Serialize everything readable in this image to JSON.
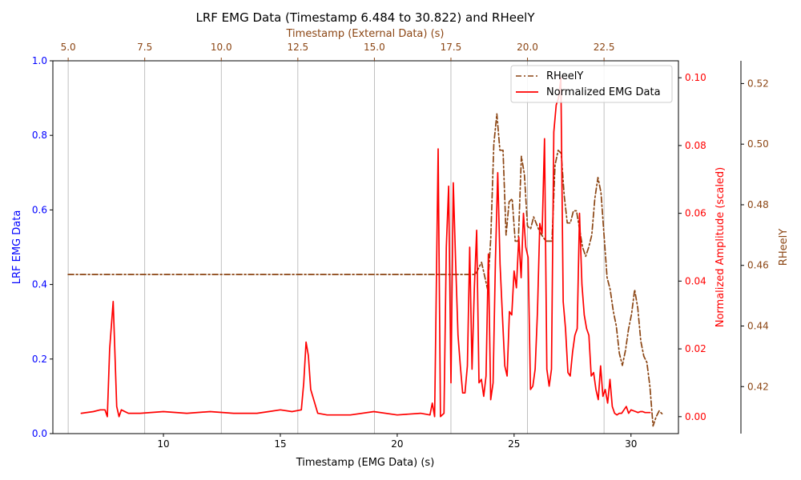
{
  "chart_data": {
    "type": "line",
    "title": "LRF EMG Data (Timestamp 6.484 to 30.822) and RHeelY",
    "axes": {
      "x_bottom": {
        "label": "Timestamp (EMG Data) (s)",
        "range": [
          5.27,
          32.03
        ],
        "ticks": [
          10,
          15,
          20,
          25,
          30
        ],
        "tick_labels": [
          "10",
          "15",
          "20",
          "25",
          "30"
        ],
        "color": "#000000"
      },
      "x_top": {
        "label": "Timestamp (External Data) (s)",
        "range": [
          4.5,
          24.93
        ],
        "ticks": [
          5.0,
          7.5,
          10.0,
          12.5,
          15.0,
          17.5,
          20.0,
          22.5
        ],
        "tick_labels": [
          "5.0",
          "7.5",
          "10.0",
          "12.5",
          "15.0",
          "17.5",
          "20.0",
          "22.5"
        ],
        "color": "#8B4513",
        "grid": true
      },
      "y_left": {
        "label": "LRF EMG Data",
        "range": [
          0,
          1
        ],
        "ticks": [
          0.0,
          0.2,
          0.4,
          0.6,
          0.8,
          1.0
        ],
        "tick_labels": [
          "0.0",
          "0.2",
          "0.4",
          "0.6",
          "0.8",
          "1.0"
        ],
        "color": "#0000ff"
      },
      "y_right": {
        "label": "Normalized Amplitude (scaled)",
        "range": [
          -0.005,
          0.105
        ],
        "ticks": [
          0.0,
          0.02,
          0.04,
          0.06,
          0.08,
          0.1
        ],
        "tick_labels": [
          "0.00",
          "0.02",
          "0.04",
          "0.06",
          "0.08",
          "0.10"
        ],
        "color": "#ff0000"
      },
      "y_right2": {
        "label": "RHeelY",
        "range": [
          0.4045,
          0.5275
        ],
        "ticks": [
          0.42,
          0.44,
          0.46,
          0.48,
          0.5,
          0.52
        ],
        "tick_labels": [
          "0.42",
          "0.44",
          "0.46",
          "0.48",
          "0.50",
          "0.52"
        ],
        "color": "#8B4513"
      }
    },
    "legend": {
      "position": "top-right",
      "entries": [
        "RHeelY",
        "Normalized EMG Data"
      ]
    },
    "series": [
      {
        "name": "RHeelY",
        "axis": "y_right2",
        "x_axis": "x_top",
        "style": "dash-dot",
        "color": "#8B4513",
        "x": [
          5.0,
          8.0,
          12.0,
          16.0,
          18.0,
          18.3,
          18.5,
          18.7,
          18.8,
          18.9,
          19.0,
          19.1,
          19.2,
          19.3,
          19.4,
          19.5,
          19.6,
          19.7,
          19.8,
          19.9,
          20.0,
          20.1,
          20.2,
          20.4,
          20.6,
          20.8,
          20.9,
          21.0,
          21.1,
          21.2,
          21.3,
          21.4,
          21.5,
          21.6,
          21.8,
          21.9,
          22.0,
          22.1,
          22.2,
          22.3,
          22.4,
          22.5,
          22.6,
          22.7,
          22.8,
          22.9,
          23.0,
          23.1,
          23.2,
          23.3,
          23.4,
          23.5,
          23.6,
          23.7,
          23.8,
          23.9,
          24.0,
          24.1,
          24.2,
          24.3,
          24.4
        ],
        "y": [
          0.457,
          0.457,
          0.457,
          0.457,
          0.457,
          0.457,
          0.461,
          0.452,
          0.469,
          0.5,
          0.51,
          0.498,
          0.498,
          0.47,
          0.481,
          0.482,
          0.468,
          0.468,
          0.496,
          0.49,
          0.473,
          0.472,
          0.476,
          0.471,
          0.468,
          0.468,
          0.493,
          0.498,
          0.497,
          0.483,
          0.474,
          0.474,
          0.478,
          0.478,
          0.466,
          0.463,
          0.466,
          0.47,
          0.482,
          0.489,
          0.484,
          0.47,
          0.456,
          0.452,
          0.445,
          0.44,
          0.431,
          0.427,
          0.432,
          0.439,
          0.444,
          0.452,
          0.446,
          0.435,
          0.43,
          0.428,
          0.42,
          0.407,
          0.41,
          0.412,
          0.411
        ]
      },
      {
        "name": "Normalized EMG Data",
        "axis": "y_right",
        "x_axis": "x_bottom",
        "style": "solid",
        "color": "#ff0000",
        "x": [
          6.484,
          7.0,
          7.3,
          7.5,
          7.6,
          7.7,
          7.85,
          8.0,
          8.1,
          8.2,
          8.5,
          9.0,
          10.0,
          11.0,
          12.0,
          13.0,
          14.0,
          14.5,
          15.0,
          15.5,
          15.9,
          16.0,
          16.1,
          16.2,
          16.3,
          16.6,
          17.0,
          18.0,
          19.0,
          20.0,
          21.0,
          21.4,
          21.5,
          21.6,
          21.75,
          21.85,
          22.0,
          22.1,
          22.2,
          22.3,
          22.4,
          22.5,
          22.6,
          22.7,
          22.8,
          22.9,
          23.0,
          23.1,
          23.2,
          23.3,
          23.4,
          23.5,
          23.6,
          23.7,
          23.8,
          23.9,
          24.0,
          24.1,
          24.2,
          24.3,
          24.4,
          24.5,
          24.6,
          24.7,
          24.8,
          24.9,
          25.0,
          25.1,
          25.2,
          25.3,
          25.4,
          25.5,
          25.6,
          25.7,
          25.8,
          25.9,
          26.0,
          26.1,
          26.2,
          26.3,
          26.4,
          26.5,
          26.6,
          26.7,
          26.8,
          26.9,
          27.0,
          27.1,
          27.2,
          27.3,
          27.4,
          27.5,
          27.6,
          27.7,
          27.8,
          27.9,
          28.0,
          28.1,
          28.2,
          28.3,
          28.4,
          28.5,
          28.6,
          28.7,
          28.8,
          28.9,
          29.0,
          29.1,
          29.2,
          29.3,
          29.4,
          29.5,
          29.6,
          29.7,
          29.8,
          29.9,
          30.0,
          30.2,
          30.3,
          30.4,
          30.5,
          30.6,
          30.822
        ],
        "y": [
          0.001,
          0.0015,
          0.002,
          0.002,
          0.0,
          0.02,
          0.034,
          0.003,
          0.0,
          0.002,
          0.001,
          0.001,
          0.0015,
          0.001,
          0.0015,
          0.001,
          0.001,
          0.0015,
          0.002,
          0.0015,
          0.002,
          0.01,
          0.022,
          0.018,
          0.008,
          0.001,
          0.0005,
          0.0005,
          0.0015,
          0.0005,
          0.001,
          0.0005,
          0.004,
          0.0,
          0.079,
          0.0,
          0.001,
          0.05,
          0.068,
          0.01,
          0.069,
          0.045,
          0.024,
          0.015,
          0.007,
          0.007,
          0.015,
          0.05,
          0.014,
          0.038,
          0.055,
          0.01,
          0.011,
          0.006,
          0.012,
          0.048,
          0.005,
          0.01,
          0.046,
          0.072,
          0.045,
          0.03,
          0.015,
          0.012,
          0.031,
          0.03,
          0.043,
          0.038,
          0.053,
          0.041,
          0.06,
          0.05,
          0.047,
          0.008,
          0.009,
          0.014,
          0.031,
          0.057,
          0.054,
          0.082,
          0.014,
          0.009,
          0.014,
          0.084,
          0.092,
          0.094,
          0.1,
          0.034,
          0.026,
          0.013,
          0.012,
          0.019,
          0.024,
          0.026,
          0.06,
          0.039,
          0.03,
          0.026,
          0.024,
          0.012,
          0.013,
          0.008,
          0.005,
          0.015,
          0.006,
          0.008,
          0.004,
          0.011,
          0.003,
          0.001,
          0.0005,
          0.001,
          0.001,
          0.002,
          0.003,
          0.001,
          0.002,
          0.0015,
          0.0012,
          0.0015,
          0.0015,
          0.0012,
          0.0012
        ]
      }
    ]
  }
}
